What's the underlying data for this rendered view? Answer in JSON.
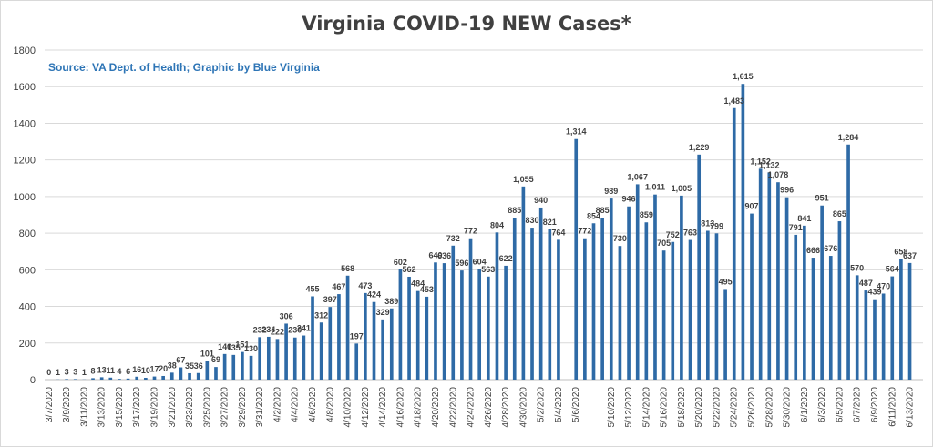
{
  "chart_data": {
    "type": "bar",
    "title": "Virginia COVID-19 NEW Cases*",
    "subtitle": "Source: VA Dept. of Health; Graphic by Blue Virginia",
    "xlabel": "",
    "ylabel": "",
    "ylim": [
      0,
      1800
    ],
    "yticks": [
      0,
      200,
      400,
      600,
      800,
      1000,
      1200,
      1400,
      1600,
      1800
    ],
    "grid": true,
    "legend": "none",
    "bar_color": "#2e6aa6",
    "subtitle_color": "#2e75b6",
    "categories": [
      "3/7/2020",
      "3/8/2020",
      "3/9/2020",
      "3/10/2020",
      "3/11/2020",
      "3/12/2020",
      "3/13/2020",
      "3/14/2020",
      "3/15/2020",
      "3/16/2020",
      "3/17/2020",
      "3/18/2020",
      "3/19/2020",
      "3/20/2020",
      "3/21/2020",
      "3/22/2020",
      "3/23/2020",
      "3/24/2020",
      "3/25/2020",
      "3/26/2020",
      "3/27/2020",
      "3/28/2020",
      "3/29/2020",
      "3/30/2020",
      "3/31/2020",
      "4/1/2020",
      "4/2/2020",
      "4/3/2020",
      "4/4/2020",
      "4/5/2020",
      "4/6/2020",
      "4/7/2020",
      "4/8/2020",
      "4/9/2020",
      "4/10/2020",
      "4/11/2020",
      "4/12/2020",
      "4/13/2020",
      "4/14/2020",
      "4/15/2020",
      "4/16/2020",
      "4/17/2020",
      "4/18/2020",
      "4/19/2020",
      "4/20/2020",
      "4/21/2020",
      "4/22/2020",
      "4/23/2020",
      "4/24/2020",
      "4/25/2020",
      "4/26/2020",
      "4/27/2020",
      "4/28/2020",
      "4/29/2020",
      "4/30/2020",
      "5/1/2020",
      "5/2/2020",
      "5/3/2020",
      "5/4/2020",
      "5/5/2020",
      "5/6/2020",
      "5/7/2020",
      "5/8/2020",
      "5/9/2020",
      "5/10/2020",
      "5/11/2020",
      "5/12/2020",
      "5/13/2020",
      "5/14/2020",
      "5/15/2020",
      "5/16/2020",
      "5/17/2020",
      "5/18/2020",
      "5/19/2020",
      "5/20/2020",
      "5/21/2020",
      "5/22/2020",
      "5/23/2020",
      "5/24/2020",
      "5/25/2020",
      "5/26/2020",
      "5/27/2020",
      "5/28/2020",
      "5/29/2020",
      "5/30/2020",
      "5/31/2020",
      "6/1/2020",
      "6/2/2020",
      "6/3/2020",
      "6/4/2020",
      "6/5/2020",
      "6/6/2020",
      "6/7/2020",
      "6/8/2020",
      "6/9/2020",
      "6/10/2020",
      "6/11/2020",
      "6/12/2020",
      "6/13/2020",
      "6/14/2020"
    ],
    "values": [
      0,
      1,
      3,
      3,
      1,
      8,
      13,
      11,
      4,
      6,
      16,
      10,
      17,
      20,
      38,
      67,
      35,
      36,
      101,
      69,
      140,
      135,
      151,
      130,
      232,
      234,
      222,
      306,
      230,
      241,
      455,
      312,
      397,
      467,
      568,
      197,
      473,
      424,
      329,
      389,
      602,
      562,
      484,
      453,
      640,
      636,
      732,
      596,
      772,
      604,
      563,
      804,
      622,
      885,
      1055,
      830,
      940,
      821,
      764,
      null,
      1314,
      772,
      854,
      885,
      989,
      730,
      946,
      1067,
      859,
      1011,
      705,
      752,
      1005,
      763,
      1229,
      813,
      799,
      495,
      1483,
      1615,
      907,
      1152,
      1132,
      1078,
      996,
      791,
      841,
      666,
      951,
      676,
      865,
      1284,
      570,
      487,
      439,
      470,
      564,
      658,
      637,
      null
    ],
    "data_labels": [
      "0",
      "1",
      "3",
      "3",
      "1",
      "8",
      "13",
      "11",
      "4",
      "6",
      "16",
      "10",
      "17",
      "20",
      "38",
      "67",
      "35",
      "36",
      "101",
      "69",
      "140",
      "135",
      "151",
      "130",
      "232",
      "234",
      "222",
      "306",
      "230",
      "241",
      "455",
      "312",
      "397",
      "467",
      "568",
      "197",
      "473",
      "424",
      "329",
      "389",
      "602",
      "562",
      "484",
      "453",
      "640",
      "636",
      "732",
      "596",
      "772",
      "604",
      "563",
      "804",
      "622",
      "885",
      "1,055",
      "830",
      "940",
      "821",
      "764",
      "",
      "1,314",
      "772",
      "854",
      "885",
      "989",
      "730",
      "946",
      "1,067",
      "859",
      "1,011",
      "705",
      "752",
      "1,005",
      "763",
      "1,229",
      "813",
      "799",
      "495",
      "1,483",
      "1,615",
      "907",
      "1,152",
      "1,132",
      "1,078",
      "996",
      "791",
      "841",
      "666",
      "951",
      "676",
      "865",
      "1,284",
      "570",
      "487",
      "439",
      "470",
      "564",
      "658",
      "637",
      ""
    ],
    "x_tick_labels": [
      "3/7/2020",
      "",
      "3/9/2020",
      "",
      "3/11/2020",
      "",
      "3/13/2020",
      "",
      "3/15/2020",
      "",
      "3/17/2020",
      "",
      "3/19/2020",
      "",
      "3/21/2020",
      "",
      "3/23/2020",
      "",
      "3/25/2020",
      "",
      "3/27/2020",
      "",
      "3/29/2020",
      "",
      "3/31/2020",
      "",
      "4/2/2020",
      "",
      "4/4/2020",
      "",
      "4/6/2020",
      "",
      "4/8/2020",
      "",
      "4/10/2020",
      "",
      "4/12/2020",
      "",
      "4/14/2020",
      "",
      "4/16/2020",
      "",
      "4/18/2020",
      "",
      "4/20/2020",
      "",
      "4/22/2020",
      "",
      "4/24/2020",
      "",
      "4/26/2020",
      "",
      "4/28/2020",
      "",
      "4/30/2020",
      "",
      "5/2/2020",
      "",
      "5/4/2020",
      "",
      "5/6/2020",
      "",
      "",
      "",
      "5/10/2020",
      "",
      "5/12/2020",
      "",
      "5/14/2020",
      "",
      "5/16/2020",
      "",
      "5/18/2020",
      "",
      "5/20/2020",
      "",
      "5/22/2020",
      "",
      "5/24/2020",
      "",
      "5/26/2020",
      "",
      "5/28/2020",
      "",
      "5/30/2020",
      "",
      "6/1/2020",
      "",
      "6/3/2020",
      "",
      "6/5/2020",
      "",
      "6/7/2020",
      "",
      "6/9/2020",
      "",
      "6/11/2020",
      "",
      "6/13/2020",
      ""
    ]
  }
}
